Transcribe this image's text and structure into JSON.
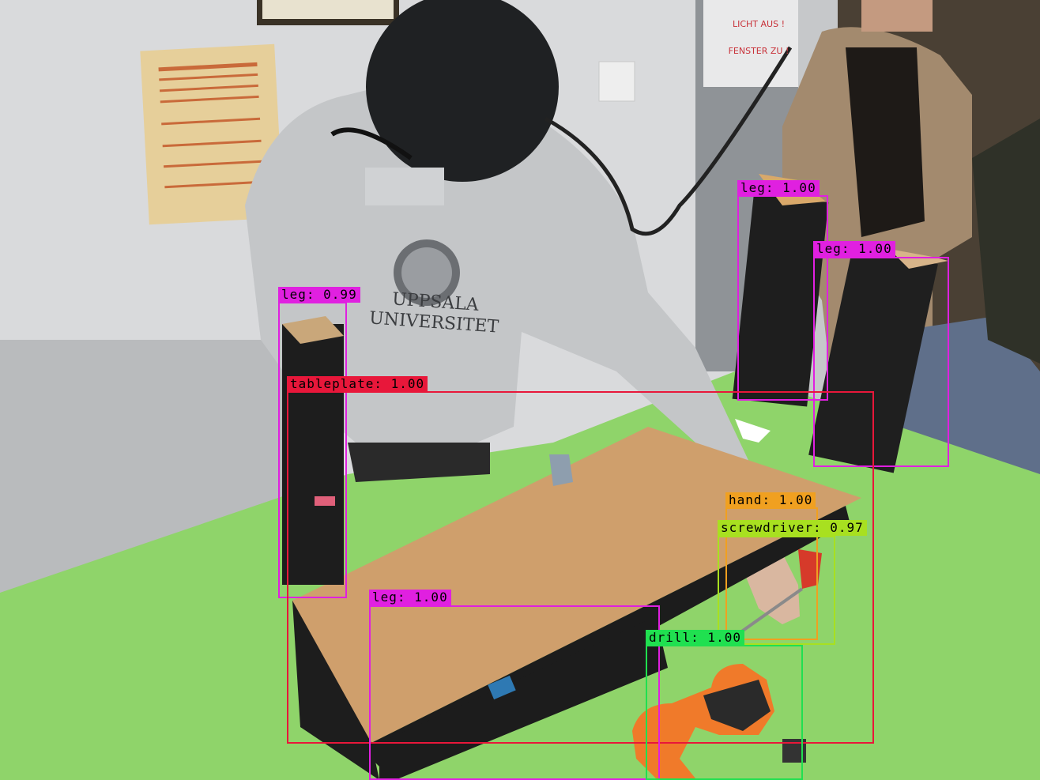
{
  "image": {
    "description_kind": "object-detection-overlay",
    "scene_elements": [
      "person-with-helmet-camera",
      "table-plate",
      "green-workbench",
      "table-legs",
      "cordless-drill",
      "screwdriver"
    ]
  },
  "person_shirt": {
    "line1": "UPPSALA",
    "line2": "UNIVERSITET"
  },
  "door_sign": {
    "line1": "LICHT AUS !",
    "line2": "FENSTER ZU !"
  },
  "detections": [
    {
      "id": "leg-1",
      "label": "leg: 1.00",
      "color": "#e020e0"
    },
    {
      "id": "leg-2",
      "label": "leg: 1.00",
      "color": "#e020e0"
    },
    {
      "id": "leg-3",
      "label": "leg: 0.99",
      "color": "#e020e0"
    },
    {
      "id": "tableplate",
      "label": "tableplate: 1.00",
      "color": "#e8173a"
    },
    {
      "id": "hand",
      "label": "hand: 1.00",
      "color": "#f0a020"
    },
    {
      "id": "screwdriver",
      "label": "screwdriver: 0.97",
      "color": "#a8e020"
    },
    {
      "id": "leg-4",
      "label": "leg: 1.00",
      "color": "#e020e0"
    },
    {
      "id": "drill",
      "label": "drill: 1.00",
      "color": "#20e050"
    }
  ]
}
